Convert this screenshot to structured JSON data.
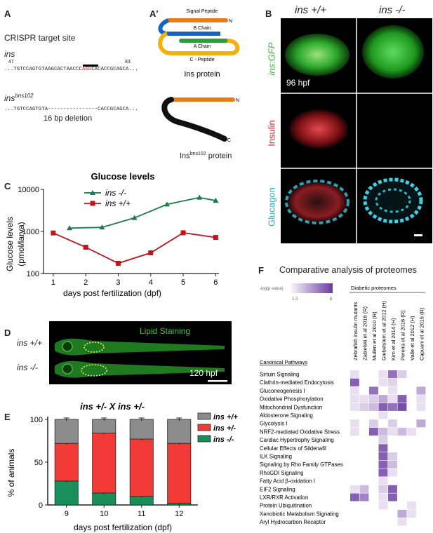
{
  "panel_letters": {
    "A": "A",
    "A2": "A′",
    "B": "B",
    "C": "C",
    "D": "D",
    "E": "E",
    "F": "F"
  },
  "panelA": {
    "title": "CRISPR target site",
    "gene": "ins",
    "pos_start": "47",
    "pos_end": "83",
    "seq_prefix": "...TGTCCAGTGTAAGCACTAACCC",
    "seq_pam": "AGG",
    "seq_suffix": "CACACCGCAGCA...",
    "mutant_gene": "ins",
    "mutant_sup": "bns102",
    "mutant_seq": "...TGTCCAGTGTA----------------CACCGCAGCA...",
    "deletion_label": "16 bp deletion"
  },
  "panelA2": {
    "signal_peptide": "Signal Peptide",
    "b_chain": "B Chain",
    "a_chain": "A Chain",
    "c_peptide": "C - Peptide",
    "n_term": "N",
    "c_term": "C",
    "protein_label": "Ins protein",
    "mutant_protein_prefix": "Ins",
    "mutant_protein_sup": "bns102",
    "mutant_protein_suffix": " protein"
  },
  "panelB": {
    "col1": "ins +/+",
    "col2": "ins -/-",
    "row1": "ins:GFP",
    "row2": "Insulin",
    "row3": "Glucagon",
    "stage": "96 hpf",
    "colors": {
      "gfp": "#2fbf2f",
      "insulin": "#d8282d",
      "glucagon": "#29b6c6"
    }
  },
  "panelC": {
    "chart_data": {
      "type": "line",
      "title": "Glucose levels",
      "xlabel": "days post fertilization (dpf)",
      "ylabel_line1": "Glucose levels",
      "ylabel_line2": "(pmol/larva)",
      "yscale": "log",
      "ylim": [
        100,
        10000
      ],
      "yticks": [
        "100",
        "1000",
        "10000"
      ],
      "xlim": [
        0.7,
        6.1
      ],
      "xticks": [
        "1",
        "2",
        "3",
        "4",
        "5",
        "6"
      ],
      "series": [
        {
          "name": "ins -/-",
          "color": "#1a7a4a",
          "marker": "triangle",
          "x": [
            1.5,
            2.5,
            3.5,
            4.5,
            5.5,
            6
          ],
          "y": [
            1200,
            1250,
            2100,
            4400,
            6400,
            5400
          ]
        },
        {
          "name": "ins +/+",
          "color": "#c0151b",
          "marker": "square",
          "x": [
            1,
            2,
            3,
            4,
            5,
            6
          ],
          "y": [
            920,
            420,
            175,
            310,
            930,
            720
          ]
        }
      ]
    }
  },
  "panelD": {
    "title": "Lipid Staining",
    "row1": "ins +/+",
    "row2": "ins -/-",
    "stage": "120 hpf"
  },
  "panelE": {
    "chart_data": {
      "type": "bar",
      "title": "ins +/-  X  ins +/-",
      "xlabel": "days post fertilization (dpf)",
      "ylabel": "% of animals",
      "ylim": [
        0,
        100
      ],
      "yticks": [
        "0",
        "50",
        "100"
      ],
      "categories": [
        "9",
        "10",
        "11",
        "12"
      ],
      "series": [
        {
          "name": "ins -/-",
          "color": "#1a8f5a",
          "values": [
            28,
            14,
            10,
            2
          ]
        },
        {
          "name": "ins +/-",
          "color": "#f23b36",
          "values": [
            44,
            70,
            67,
            70
          ]
        },
        {
          "name": "ins +/+",
          "color": "#8c8c8c",
          "values": [
            28,
            16,
            23,
            28
          ]
        }
      ],
      "legend": [
        "ins +/+",
        "ins +/-",
        "ins -/-"
      ]
    }
  },
  "panelF": {
    "chart_data": {
      "type": "heatmap",
      "title": "Comparative analysis of proteomes",
      "scale_label": "-log(p-value)",
      "scale_min": "1.3",
      "scale_max": "6",
      "group_label": "Diabetic proteomes",
      "row_header": "Canonical Pathways",
      "columns": [
        "Zebrafish insulin mutants",
        "Zabielski et al 2016 (R)",
        "Mullen et al 2010 (R)",
        "Giebelstein et al 2012 (H)",
        "Kim et al 2014 (H)",
        "Pereira et al 2016 (R)",
        "Valle et al 2012 (H)",
        "Capuani et al 2015 (R)"
      ],
      "rows": [
        "Sirtuin Signaling",
        "Clathrin-mediated Endocytosis",
        "Gluconeogenesis I",
        "Oxidative Phosphorylation",
        "Mitochondrial Dysfunction",
        "Aldosterone Signaling",
        "Glycolysis I",
        "NRF2-mediated Oxidative Stress",
        "Cardiac Hypertrophy Signaling",
        "Cellular Effects of Sildenafil",
        "ILK Signaling",
        "Signaling by Rho Family GTPases",
        "RhoGDI Signaling",
        "Fatty Acid β-oxidation I",
        "EIF2 Signaling",
        "LXR/RXR Activation",
        "Protein Ubiquitination",
        "Xenobiotic Metabolism Signaling",
        "Aryl Hydrocarbon Receptor"
      ],
      "values": [
        [
          1.5,
          0,
          0,
          1.5,
          4.5,
          2,
          0,
          0
        ],
        [
          5,
          0,
          0,
          1.5,
          1.8,
          0,
          0,
          0
        ],
        [
          1.5,
          0,
          4.5,
          0,
          1.5,
          0,
          0,
          3
        ],
        [
          1.5,
          1.5,
          2,
          3,
          1.5,
          5,
          0,
          1.5
        ],
        [
          1.5,
          2,
          2.5,
          5,
          4.5,
          5.5,
          0,
          1.5
        ],
        [
          0,
          0,
          0,
          1.5,
          0,
          0,
          0,
          0
        ],
        [
          1.5,
          0,
          2,
          0,
          2,
          0,
          0,
          3
        ],
        [
          1.5,
          0,
          5,
          2.5,
          1.5,
          2.5,
          1.5,
          0
        ],
        [
          0,
          0,
          0,
          2,
          0,
          0,
          0,
          0
        ],
        [
          0,
          0,
          0,
          5,
          0,
          0,
          0,
          0
        ],
        [
          0,
          0,
          0,
          5,
          2,
          0,
          0,
          0
        ],
        [
          0,
          0,
          0,
          5,
          2.5,
          0,
          0,
          0
        ],
        [
          0,
          0,
          0,
          5,
          1.5,
          0,
          0,
          0
        ],
        [
          0,
          0,
          0,
          1.5,
          0,
          0,
          0,
          0
        ],
        [
          1.5,
          2.5,
          0,
          2,
          5,
          0,
          0,
          0
        ],
        [
          5,
          4,
          0,
          1.5,
          5,
          0,
          0,
          0
        ],
        [
          0,
          0,
          0,
          1.5,
          0,
          0,
          1.5,
          0
        ],
        [
          0,
          0,
          0,
          0,
          0,
          3,
          1.5,
          0
        ],
        [
          0,
          0,
          0,
          0,
          0,
          1.5,
          0,
          0
        ]
      ],
      "color_max": "#6a3aa0"
    }
  }
}
